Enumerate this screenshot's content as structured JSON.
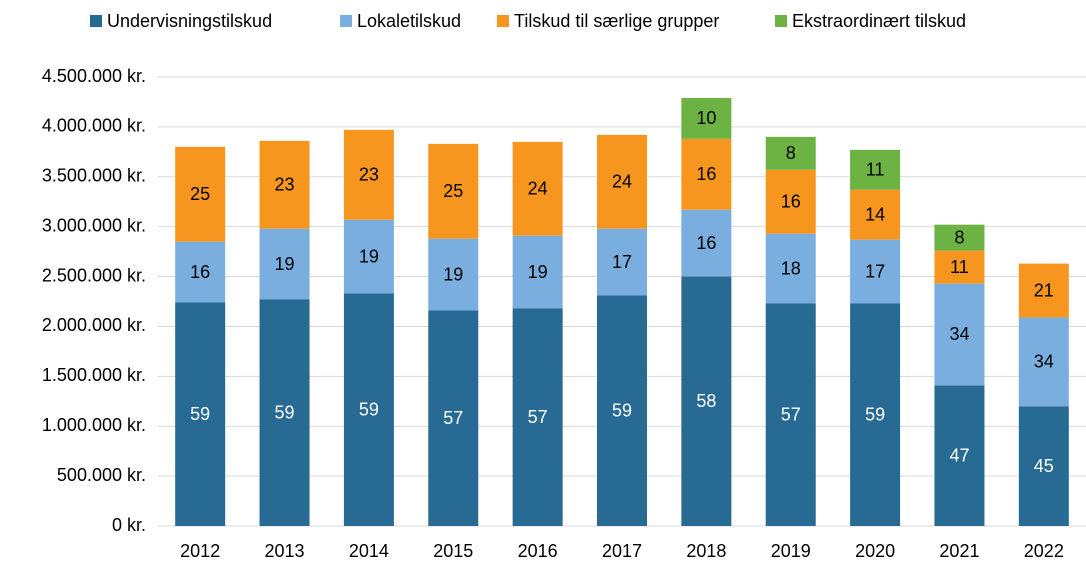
{
  "chart_data": {
    "type": "stacked_bar",
    "categories": [
      "2012",
      "2013",
      "2014",
      "2015",
      "2016",
      "2017",
      "2018",
      "2019",
      "2020",
      "2021",
      "2022"
    ],
    "series": [
      {
        "name": "Undervisningstilskud",
        "color": "#276a93",
        "label_color": "#ffffff",
        "values": [
          2240000,
          2270000,
          2330000,
          2160000,
          2180000,
          2310000,
          2500000,
          2230000,
          2230000,
          1410000,
          1200000
        ],
        "shares": [
          59,
          59,
          59,
          57,
          57,
          59,
          58,
          57,
          59,
          47,
          45
        ]
      },
      {
        "name": "Lokaletilskud",
        "color": "#7aaedf",
        "label_color": "#000000",
        "values": [
          610000,
          710000,
          740000,
          720000,
          730000,
          670000,
          670000,
          700000,
          640000,
          1020000,
          890000
        ],
        "shares": [
          16,
          19,
          19,
          19,
          19,
          17,
          16,
          18,
          17,
          34,
          34
        ]
      },
      {
        "name": "Tilskud til særlige grupper",
        "color": "#f7961e",
        "label_color": "#000000",
        "values": [
          950000,
          880000,
          900000,
          950000,
          940000,
          940000,
          710000,
          640000,
          500000,
          330000,
          540000
        ],
        "shares": [
          25,
          23,
          23,
          25,
          24,
          24,
          16,
          16,
          14,
          11,
          21
        ]
      },
      {
        "name": "Ekstraordinært tilskud",
        "color": "#6cb343",
        "label_color": "#000000",
        "values": [
          null,
          null,
          null,
          null,
          null,
          null,
          410000,
          330000,
          400000,
          260000,
          null
        ],
        "shares": [
          null,
          null,
          null,
          null,
          null,
          null,
          10,
          8,
          11,
          8,
          null
        ]
      }
    ],
    "ylim": [
      0,
      4500000
    ],
    "yticks": [
      {
        "value": 0,
        "label": "0 kr."
      },
      {
        "value": 500000,
        "label": "500.000 kr."
      },
      {
        "value": 1000000,
        "label": "1.000.000 kr."
      },
      {
        "value": 1500000,
        "label": "1.500.000 kr."
      },
      {
        "value": 2000000,
        "label": "2.000.000 kr."
      },
      {
        "value": 2500000,
        "label": "2.500.000 kr."
      },
      {
        "value": 3000000,
        "label": "3.000.000 kr."
      },
      {
        "value": 3500000,
        "label": "3.500.000 kr."
      },
      {
        "value": 4000000,
        "label": "4.000.000 kr."
      },
      {
        "value": 4500000,
        "label": "4.500.000 kr."
      }
    ],
    "grid": true,
    "legend": "top"
  }
}
